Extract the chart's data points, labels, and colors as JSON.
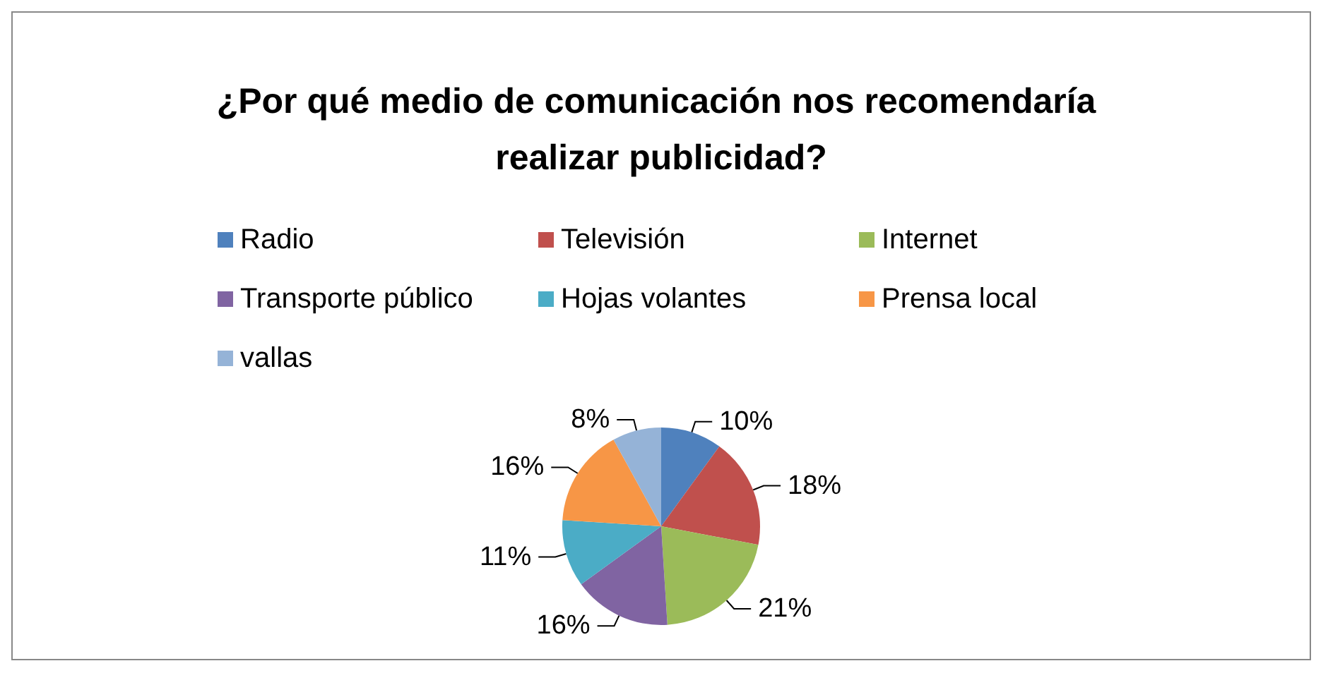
{
  "chart_data": {
    "type": "pie",
    "title": "¿Por qué medio de comunicación nos recomendaría realizar publicidad?",
    "categories": [
      "Radio",
      "Televisión",
      "Internet",
      "Transporte público",
      "Hojas volantes",
      "Prensa local",
      "vallas"
    ],
    "values": [
      10,
      18,
      21,
      16,
      11,
      16,
      8
    ],
    "value_labels": [
      "10%",
      "18%",
      "21%",
      "16%",
      "11%",
      "16%",
      "8%"
    ],
    "colors": [
      "#4f81bd",
      "#c0504d",
      "#9bbb59",
      "#8064a2",
      "#4bacc6",
      "#f79646",
      "#95b3d7"
    ],
    "legend": "top"
  }
}
